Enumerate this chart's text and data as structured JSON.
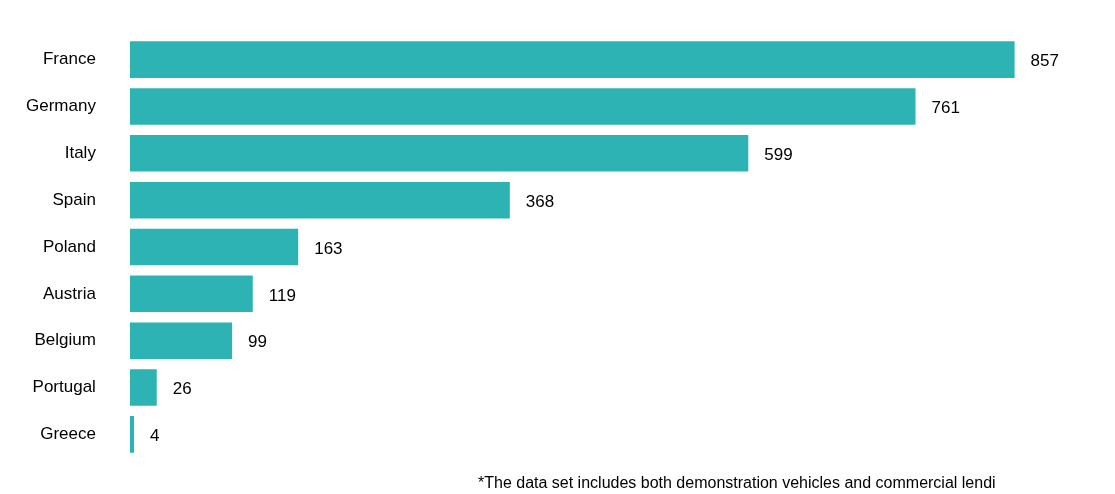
{
  "chart_data": {
    "type": "bar",
    "orientation": "horizontal",
    "categories": [
      "France",
      "Germany",
      "Italy",
      "Spain",
      "Poland",
      "Austria",
      "Belgium",
      "Portugal",
      "Greece"
    ],
    "values": [
      857,
      761,
      599,
      368,
      163,
      119,
      99,
      26,
      4
    ],
    "color": "#2db3b3",
    "data_labels": true,
    "annotations": [
      "*The data set includes both demonstration vehicles and commercial lendi"
    ]
  }
}
